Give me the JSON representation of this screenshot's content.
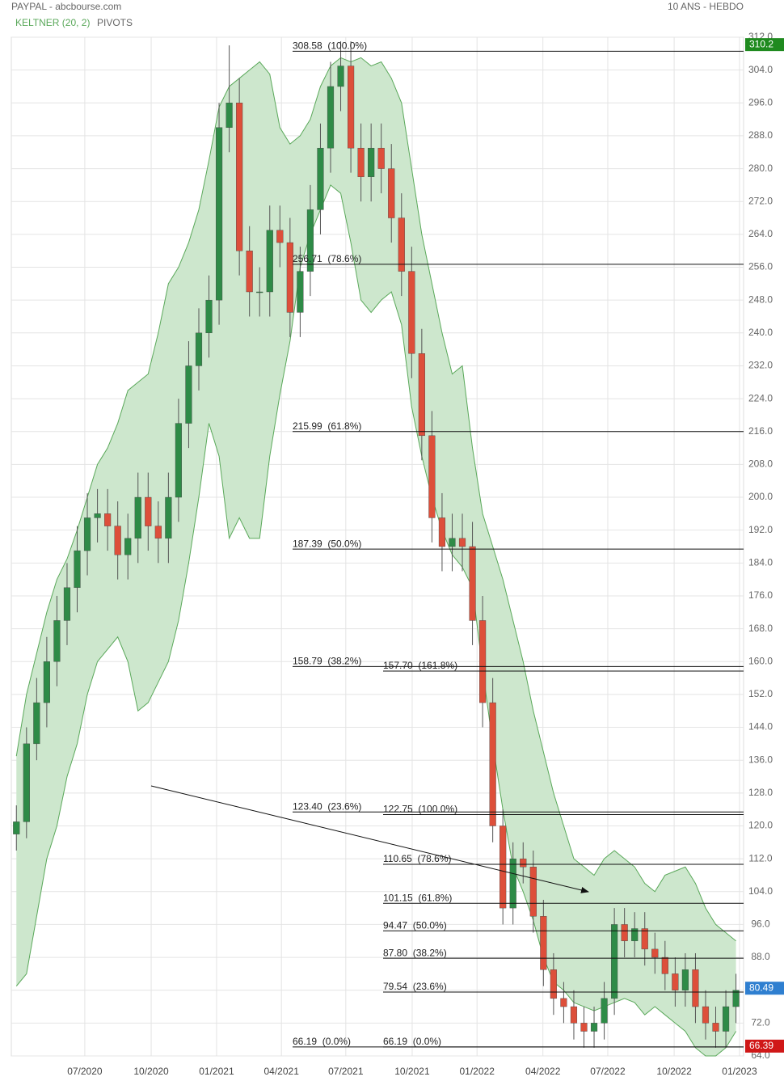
{
  "chart_data": {
    "type": "candlestick",
    "title": "PAYPAL - abcbourse.com",
    "subtitle": "10 ANS - HEBDO",
    "pivots_label": "PIVOTS",
    "up_color": "#2e8b47",
    "down_color": "#dd4f3a",
    "x": [
      1,
      3,
      5,
      7,
      9,
      11,
      13,
      15,
      17,
      19,
      21,
      23,
      25,
      27,
      29,
      31,
      33,
      35,
      37,
      39,
      41,
      43,
      45,
      47,
      49,
      51,
      53,
      55,
      57,
      59,
      61,
      63,
      65,
      67,
      69,
      71,
      73,
      75,
      77,
      79,
      81,
      83,
      85,
      87,
      89,
      91,
      93,
      95,
      97,
      99,
      101,
      103,
      105,
      107,
      109,
      111,
      113,
      115,
      117,
      119,
      121,
      123,
      125,
      127,
      129,
      131,
      133,
      135,
      137,
      139,
      141,
      143
    ],
    "open": [
      118,
      121,
      140,
      150,
      160,
      170,
      178,
      187,
      195,
      196,
      193,
      186,
      190,
      200,
      193,
      190,
      200,
      218,
      232,
      240,
      248,
      290,
      296,
      260,
      250,
      250,
      265,
      262,
      245,
      255,
      270,
      285,
      300,
      305,
      285,
      278,
      285,
      280,
      268,
      255,
      235,
      215,
      195,
      188,
      190,
      188,
      170,
      150,
      120,
      100,
      112,
      110,
      98,
      85,
      78,
      76,
      72,
      70,
      72,
      78,
      96,
      92,
      95,
      90,
      88,
      84,
      80,
      85,
      76,
      72,
      70,
      76
    ],
    "high": [
      125,
      144,
      156,
      166,
      176,
      184,
      193,
      201,
      202,
      202,
      199,
      196,
      206,
      206,
      199,
      206,
      224,
      238,
      246,
      254,
      296,
      310,
      302,
      266,
      256,
      271,
      271,
      268,
      261,
      276,
      291,
      306,
      311,
      311,
      291,
      291,
      291,
      286,
      274,
      261,
      241,
      221,
      201,
      196,
      196,
      194,
      176,
      156,
      124,
      116,
      116,
      114,
      102,
      89,
      82,
      80,
      76,
      76,
      82,
      100,
      100,
      99,
      99,
      94,
      92,
      88,
      89,
      89,
      80,
      76,
      80,
      84
    ],
    "low": [
      114,
      117,
      136,
      144,
      154,
      164,
      172,
      181,
      189,
      187,
      180,
      180,
      184,
      187,
      184,
      184,
      194,
      212,
      226,
      234,
      242,
      284,
      254,
      244,
      244,
      244,
      256,
      239,
      239,
      249,
      264,
      279,
      294,
      279,
      272,
      272,
      274,
      262,
      249,
      229,
      209,
      189,
      182,
      182,
      182,
      164,
      144,
      116,
      96,
      96,
      106,
      94,
      81,
      74,
      72,
      68,
      66,
      66,
      68,
      74,
      88,
      88,
      86,
      84,
      80,
      76,
      76,
      72,
      68,
      66,
      66,
      72
    ],
    "close": [
      121,
      140,
      150,
      160,
      170,
      178,
      187,
      195,
      196,
      193,
      186,
      190,
      200,
      193,
      190,
      200,
      218,
      232,
      240,
      248,
      290,
      296,
      260,
      250,
      250,
      265,
      262,
      245,
      255,
      270,
      285,
      300,
      305,
      285,
      278,
      285,
      280,
      268,
      255,
      235,
      215,
      195,
      188,
      190,
      188,
      170,
      150,
      120,
      100,
      112,
      110,
      98,
      85,
      78,
      76,
      72,
      70,
      72,
      78,
      96,
      92,
      95,
      90,
      88,
      84,
      80,
      85,
      76,
      72,
      70,
      76,
      80
    ],
    "keltner": {
      "name": "KELTNER (20, 2)",
      "color": "#5aa85a",
      "fill": "#cde7cd",
      "upper": [
        137,
        152,
        162,
        172,
        180,
        185,
        192,
        200,
        208,
        212,
        218,
        226,
        228,
        230,
        240,
        252,
        256,
        262,
        270,
        282,
        295,
        300,
        302,
        304,
        306,
        303,
        290,
        286,
        288,
        292,
        300,
        305,
        307,
        306,
        307,
        305,
        306,
        302,
        296,
        280,
        264,
        252,
        240,
        230,
        232,
        212,
        196,
        188,
        180,
        170,
        160,
        148,
        138,
        128,
        120,
        112,
        110,
        108,
        112,
        114,
        112,
        110,
        106,
        104,
        108,
        109,
        110,
        106,
        100,
        96,
        94,
        92
      ],
      "lower": [
        81,
        84,
        98,
        112,
        120,
        132,
        140,
        152,
        160,
        163,
        166,
        160,
        148,
        150,
        155,
        160,
        170,
        184,
        200,
        218,
        210,
        190,
        195,
        190,
        190,
        210,
        225,
        238,
        256,
        264,
        270,
        276,
        274,
        262,
        248,
        245,
        248,
        250,
        242,
        222,
        210,
        200,
        192,
        186,
        183,
        178,
        158,
        140,
        124,
        110,
        104,
        97,
        88,
        82,
        80,
        77,
        76,
        75,
        76,
        77,
        78,
        77,
        74,
        76,
        74,
        72,
        70,
        66,
        64,
        64,
        66,
        70
      ]
    },
    "pivots": [
      {
        "levels": [
          {
            "value": 308.58,
            "label": "308.58  (100.0%)"
          },
          {
            "value": 256.71,
            "label": "256.71  (78.6%)"
          },
          {
            "value": 215.99,
            "label": "215.99  (61.8%)"
          },
          {
            "value": 187.39,
            "label": "187.39  (50.0%)"
          },
          {
            "value": 158.79,
            "label": "158.79  (38.2%)"
          },
          {
            "value": 123.4,
            "label": "123.40  (23.6%)"
          },
          {
            "value": 66.19,
            "label": "66.19  (0.0%)"
          }
        ]
      },
      {
        "levels": [
          {
            "value": 157.7,
            "label": "157.70  (161.8%)"
          },
          {
            "value": 122.75,
            "label": "122.75  (100.0%)"
          },
          {
            "value": 110.65,
            "label": "110.65  (78.6%)"
          },
          {
            "value": 101.15,
            "label": "101.15  (61.8%)"
          },
          {
            "value": 94.47,
            "label": "94.47  (50.0%)"
          },
          {
            "value": 87.8,
            "label": "87.80  (38.2%)"
          },
          {
            "value": 79.54,
            "label": "79.54  (23.6%)"
          },
          {
            "value": 66.19,
            "label": "66.19  (0.0%)"
          }
        ]
      }
    ],
    "price_markers": [
      {
        "value": 310.2,
        "color": "#1f8a1f"
      },
      {
        "value": 80.49,
        "color": "#2f7fd0"
      },
      {
        "value": 66.39,
        "color": "#d01818"
      }
    ],
    "xlim": [
      0,
      144.5
    ],
    "xticks": [
      {
        "value": 14.5,
        "label": "07/2020"
      },
      {
        "value": 27.6,
        "label": "10/2020"
      },
      {
        "value": 40.5,
        "label": "01/2021"
      },
      {
        "value": 53.3,
        "label": "04/2021"
      },
      {
        "value": 66.0,
        "label": "07/2021"
      },
      {
        "value": 79.1,
        "label": "10/2021"
      },
      {
        "value": 91.9,
        "label": "01/2022"
      },
      {
        "value": 104.9,
        "label": "04/2022"
      },
      {
        "value": 117.7,
        "label": "07/2022"
      },
      {
        "value": 130.8,
        "label": "10/2022"
      },
      {
        "value": 143.7,
        "label": "01/2023"
      }
    ],
    "ylim": [
      64,
      312
    ],
    "yticks": [
      {
        "value": 312,
        "label": "312.0"
      },
      {
        "value": 304,
        "label": "304.0"
      },
      {
        "value": 296,
        "label": "296.0"
      },
      {
        "value": 288,
        "label": "288.0"
      },
      {
        "value": 280,
        "label": "280.0"
      },
      {
        "value": 272,
        "label": "272.0"
      },
      {
        "value": 264,
        "label": "264.0"
      },
      {
        "value": 256,
        "label": "256.0"
      },
      {
        "value": 248,
        "label": "248.0"
      },
      {
        "value": 240,
        "label": "240.0"
      },
      {
        "value": 232,
        "label": "232.0"
      },
      {
        "value": 224,
        "label": "224.0"
      },
      {
        "value": 216,
        "label": "216.0"
      },
      {
        "value": 208,
        "label": "208.0"
      },
      {
        "value": 200,
        "label": "200.0"
      },
      {
        "value": 192,
        "label": "192.0"
      },
      {
        "value": 184,
        "label": "184.0"
      },
      {
        "value": 176,
        "label": "176.0"
      },
      {
        "value": 168,
        "label": "168.0"
      },
      {
        "value": 160,
        "label": "160.0"
      },
      {
        "value": 152,
        "label": "152.0"
      },
      {
        "value": 144,
        "label": "144.0"
      },
      {
        "value": 136,
        "label": "136.0"
      },
      {
        "value": 128,
        "label": "128.0"
      },
      {
        "value": 120,
        "label": "120.0"
      },
      {
        "value": 112,
        "label": "112.0"
      },
      {
        "value": 104,
        "label": "104.0"
      },
      {
        "value": 96,
        "label": "96.0"
      },
      {
        "value": 88,
        "label": "88.0"
      },
      {
        "value": 80,
        "label": "80.0"
      },
      {
        "value": 72,
        "label": "72.0"
      },
      {
        "value": 64,
        "label": "64.0"
      }
    ],
    "grid": true
  }
}
